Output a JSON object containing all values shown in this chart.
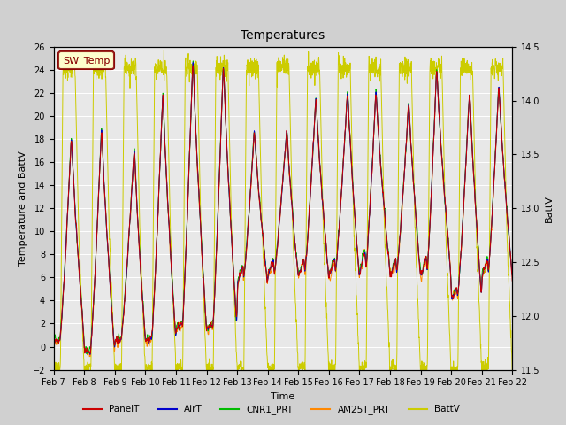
{
  "title": "Temperatures",
  "xlabel": "Time",
  "ylabel_left": "Temperature and BattV",
  "ylabel_right": "BattV",
  "ylim_left": [
    -2,
    26
  ],
  "ylim_right": [
    11.5,
    14.5
  ],
  "yticks_left": [
    -2,
    0,
    2,
    4,
    6,
    8,
    10,
    12,
    14,
    16,
    18,
    20,
    22,
    24,
    26
  ],
  "yticks_right": [
    11.5,
    12.0,
    12.5,
    13.0,
    13.5,
    14.0,
    14.5
  ],
  "xtick_labels": [
    "Feb 7",
    "Feb 8",
    "Feb 9",
    "Feb 10",
    "Feb 11",
    "Feb 12",
    "Feb 13",
    "Feb 14",
    "Feb 15",
    "Feb 16",
    "Feb 17",
    "Feb 18",
    "Feb 19",
    "Feb 20",
    "Feb 21",
    "Feb 22"
  ],
  "n_days": 15,
  "pts_per_day": 144,
  "colors": {
    "PanelT": "#cc0000",
    "AirT": "#0000cc",
    "CNR1_PRT": "#00bb00",
    "AM25T_PRT": "#ff8800",
    "BattV": "#cccc00"
  },
  "legend_box_label": "SW_Temp",
  "legend_box_text_color": "#880000",
  "legend_box_border_color": "#880000",
  "legend_box_bg": "#ffffcc",
  "fig_bg": "#d0d0d0",
  "plot_bg": "#e8e8e8",
  "linewidth": 0.7,
  "title_fontsize": 10,
  "axis_label_fontsize": 8,
  "tick_fontsize": 7
}
